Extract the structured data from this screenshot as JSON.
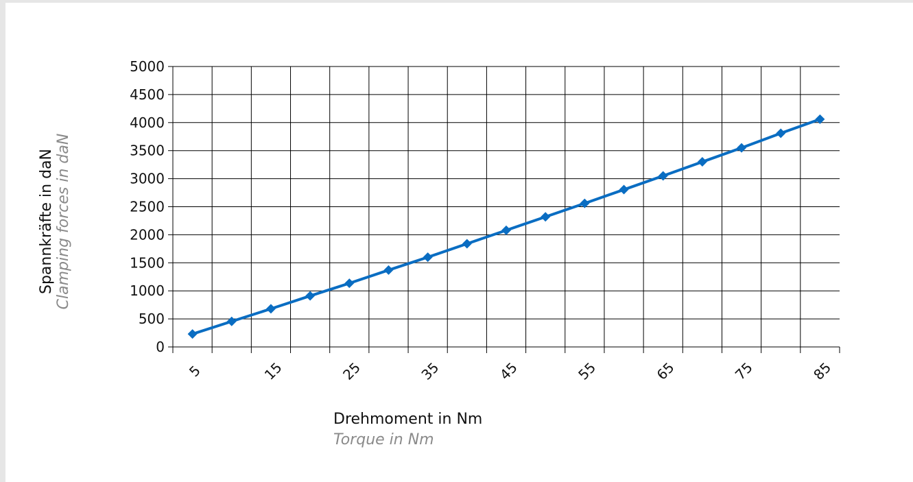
{
  "chart_data": {
    "type": "line",
    "title": "",
    "xlabel": "Drehmoment in Nm",
    "xlabel_sub": "Torque in Nm",
    "ylabel": "Spannkräfte in daN",
    "ylabel_sub": "Clamping forces in daN",
    "x_tick_labels": [
      "5",
      "15",
      "25",
      "35",
      "45",
      "55",
      "65",
      "75",
      "85"
    ],
    "ylim": [
      0,
      5000
    ],
    "y_ticks": [
      0,
      500,
      1000,
      1500,
      2000,
      2500,
      3000,
      3500,
      4000,
      4500,
      5000
    ],
    "grid": true,
    "legend": "none",
    "series": [
      {
        "color": "#0a6dc2",
        "marker": "diamond",
        "x": [
          5,
          10,
          15,
          20,
          25,
          30,
          35,
          40,
          45,
          50,
          55,
          60,
          65,
          70,
          75,
          80,
          85
        ],
        "y": [
          230,
          455,
          680,
          910,
          1135,
          1370,
          1600,
          1840,
          2080,
          2320,
          2560,
          2805,
          3050,
          3300,
          3550,
          3810,
          4060
        ]
      }
    ]
  }
}
